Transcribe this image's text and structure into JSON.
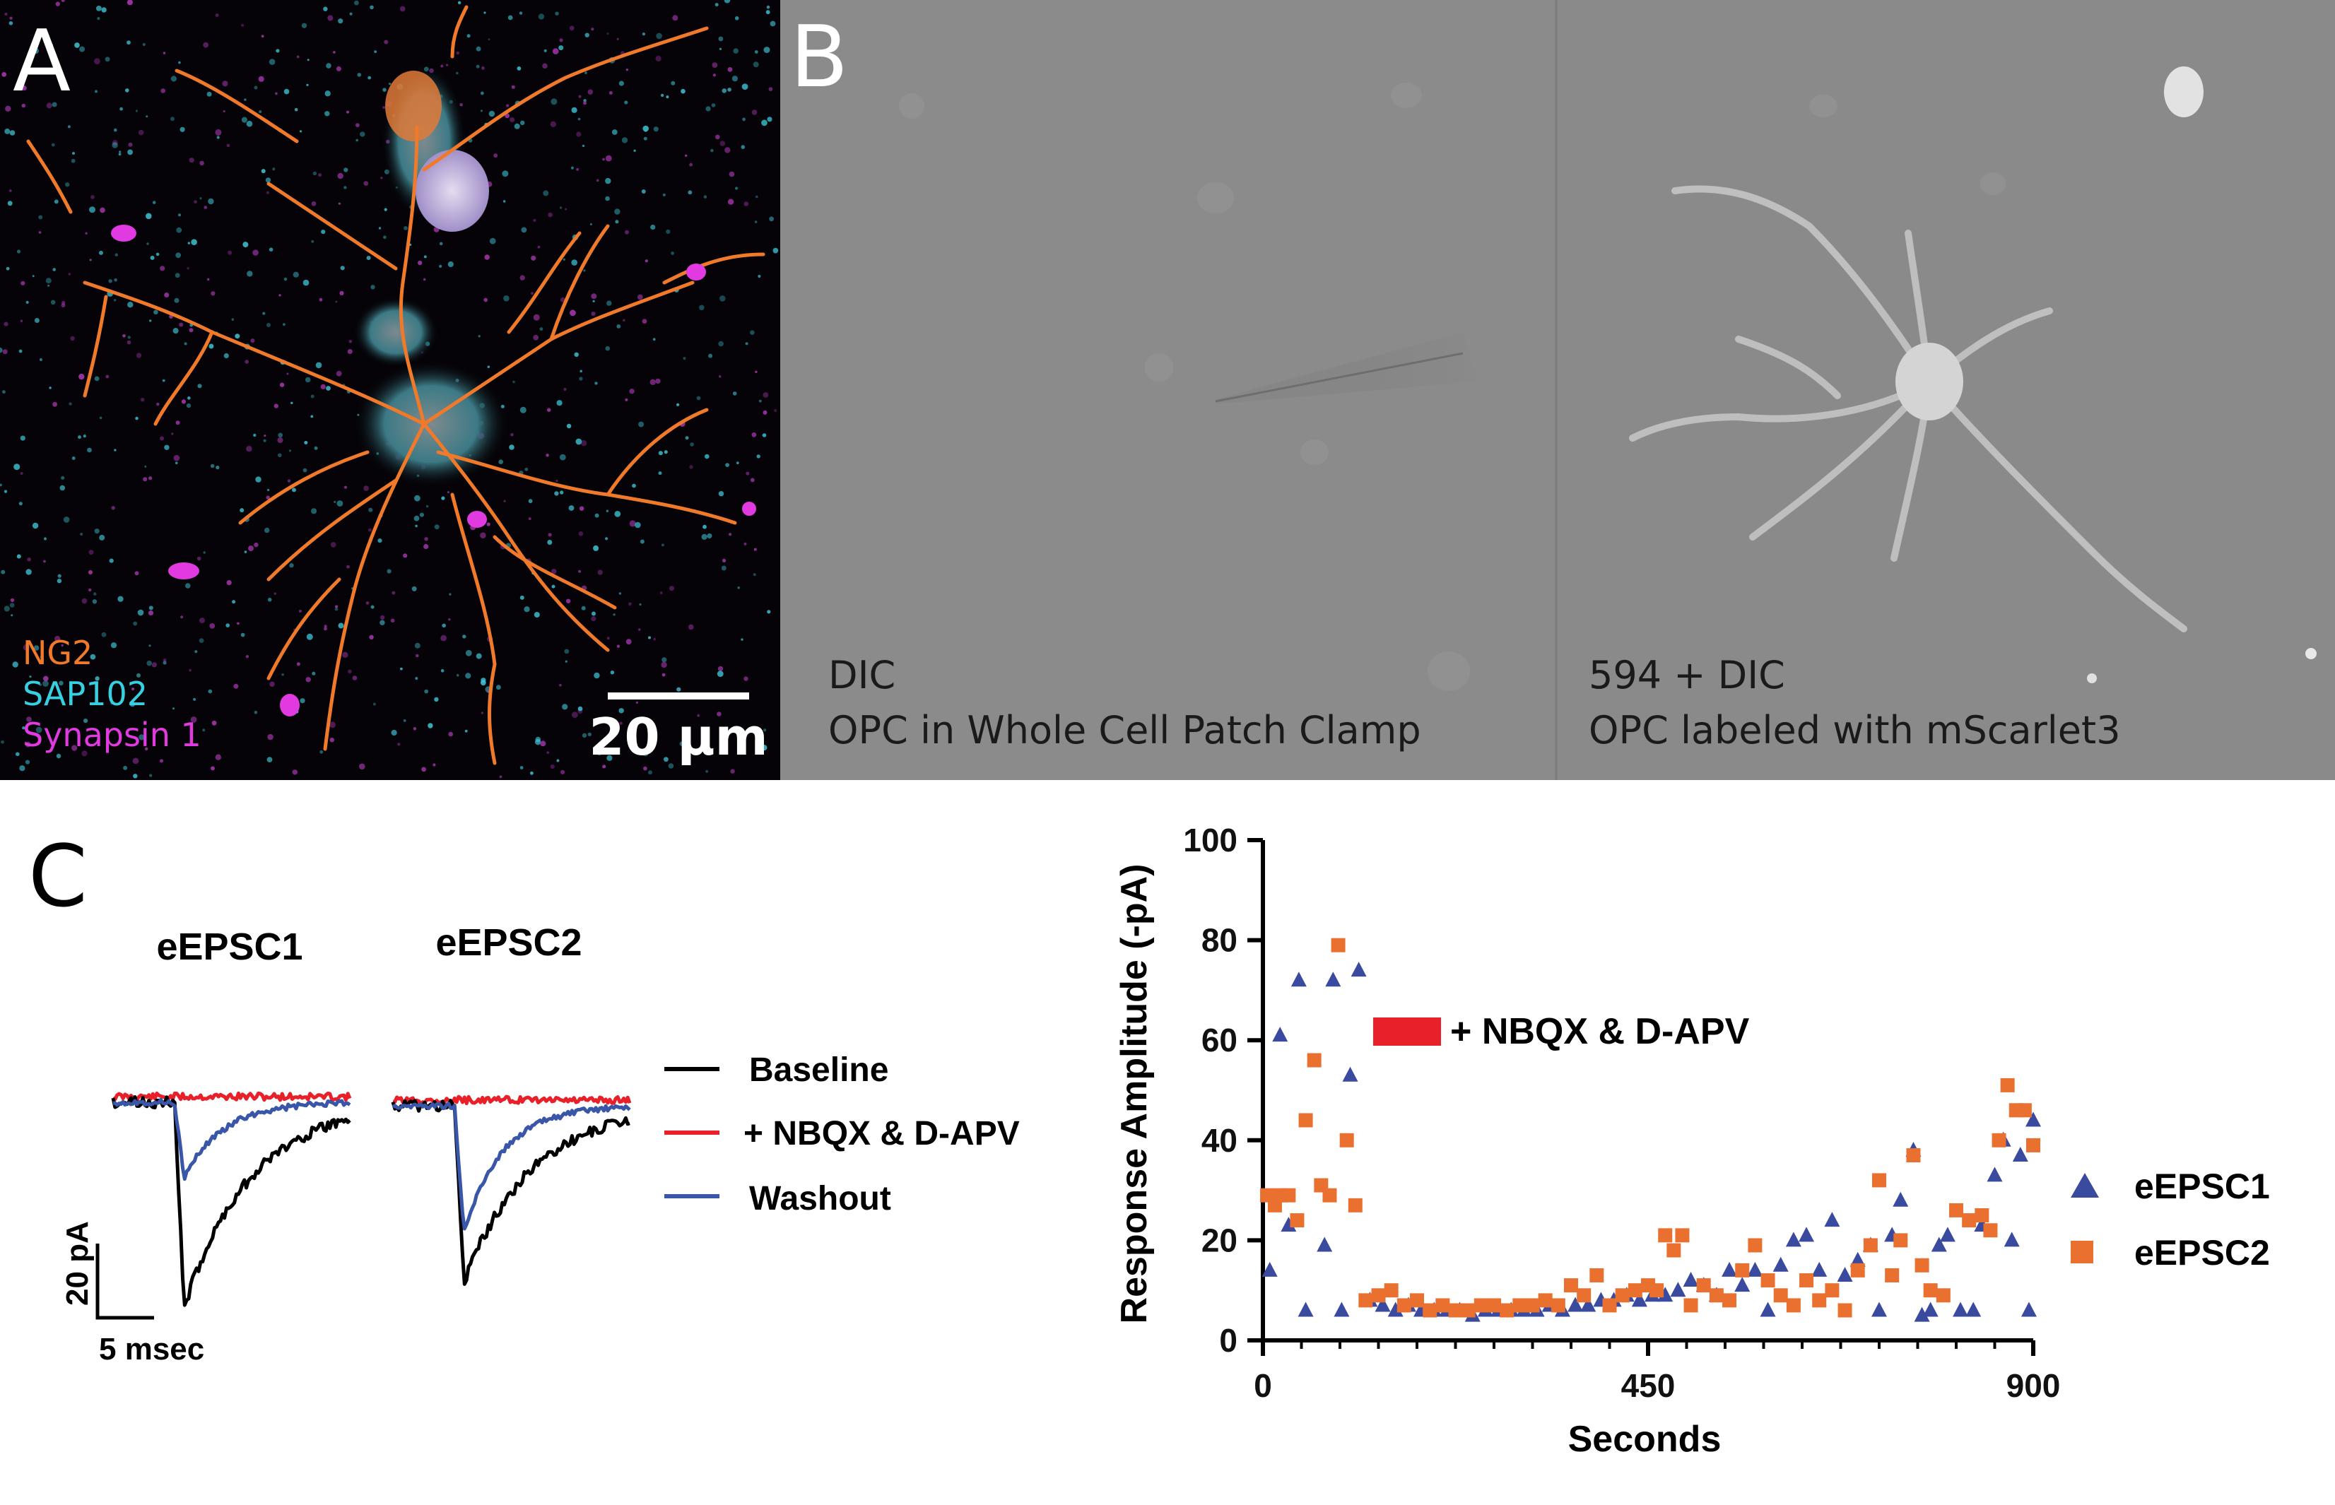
{
  "panel_a": {
    "letter": "A",
    "channels": [
      {
        "name": "NG2",
        "color": "#f07a2a"
      },
      {
        "name": "SAP102",
        "color": "#36d0e0"
      },
      {
        "name": "Synapsin 1",
        "color": "#e03ae0"
      }
    ],
    "scale_bar_label": "20 µm"
  },
  "panel_b": {
    "letter": "B",
    "left": {
      "line1": "DIC",
      "line2": "OPC in Whole Cell Patch Clamp"
    },
    "right": {
      "line1": "594 + DIC",
      "line2": "OPC labeled with mScarlet3"
    }
  },
  "panel_c": {
    "letter": "C",
    "trace_titles": [
      "eEPSC1",
      "eEPSC2"
    ],
    "trace_legend": [
      {
        "label": "Baseline",
        "color": "#000000"
      },
      {
        "label": "+ NBQX & D-APV",
        "color": "#e8202a"
      },
      {
        "label": "Washout",
        "color": "#3a56a8"
      }
    ],
    "scale_y_label": "20 pA",
    "scale_x_label": "5 msec"
  },
  "chart_data": {
    "type": "scatter",
    "xlabel": "Seconds",
    "ylabel": "Response Amplitude  (-pA)",
    "xlim": [
      0,
      900
    ],
    "ylim": [
      0,
      100
    ],
    "xticks": [
      0,
      450,
      900
    ],
    "yticks": [
      0,
      20,
      40,
      60,
      80,
      100
    ],
    "legend_position": "right",
    "drug_bar": {
      "label": "+ NBQX & D-APV",
      "color": "#e8202a"
    },
    "series": [
      {
        "name": "eEPSC1",
        "color": "#3a4a9f",
        "marker": "triangle",
        "points": [
          [
            8,
            14
          ],
          [
            20,
            61
          ],
          [
            30,
            23
          ],
          [
            42,
            72
          ],
          [
            50,
            6
          ],
          [
            72,
            19
          ],
          [
            82,
            72
          ],
          [
            92,
            6
          ],
          [
            102,
            53
          ],
          [
            112,
            74
          ],
          [
            125,
            8
          ],
          [
            140,
            7
          ],
          [
            155,
            6
          ],
          [
            170,
            7
          ],
          [
            185,
            6
          ],
          [
            200,
            6
          ],
          [
            215,
            6
          ],
          [
            230,
            6
          ],
          [
            245,
            5
          ],
          [
            260,
            6
          ],
          [
            275,
            6
          ],
          [
            290,
            6
          ],
          [
            305,
            6
          ],
          [
            320,
            6
          ],
          [
            335,
            7
          ],
          [
            350,
            6
          ],
          [
            365,
            7
          ],
          [
            380,
            7
          ],
          [
            395,
            8
          ],
          [
            410,
            8
          ],
          [
            425,
            9
          ],
          [
            440,
            8
          ],
          [
            455,
            9
          ],
          [
            470,
            9
          ],
          [
            485,
            10
          ],
          [
            500,
            12
          ],
          [
            515,
            11
          ],
          [
            530,
            9
          ],
          [
            545,
            14
          ],
          [
            560,
            11
          ],
          [
            575,
            14
          ],
          [
            590,
            6
          ],
          [
            605,
            15
          ],
          [
            620,
            20
          ],
          [
            635,
            21
          ],
          [
            650,
            14
          ],
          [
            665,
            24
          ],
          [
            680,
            13
          ],
          [
            695,
            16
          ],
          [
            710,
            19
          ],
          [
            720,
            6
          ],
          [
            735,
            21
          ],
          [
            745,
            28
          ],
          [
            760,
            38
          ],
          [
            770,
            5
          ],
          [
            780,
            6
          ],
          [
            790,
            19
          ],
          [
            800,
            21
          ],
          [
            815,
            6
          ],
          [
            830,
            6
          ],
          [
            840,
            23
          ],
          [
            855,
            33
          ],
          [
            865,
            40
          ],
          [
            875,
            20
          ],
          [
            885,
            37
          ],
          [
            895,
            6
          ],
          [
            900,
            44
          ]
        ]
      },
      {
        "name": "eEPSC2",
        "color": "#ea7030",
        "marker": "square",
        "points": [
          [
            5,
            29
          ],
          [
            14,
            27
          ],
          [
            20,
            29
          ],
          [
            30,
            29
          ],
          [
            40,
            24
          ],
          [
            50,
            44
          ],
          [
            60,
            56
          ],
          [
            68,
            31
          ],
          [
            78,
            29
          ],
          [
            88,
            79
          ],
          [
            98,
            40
          ],
          [
            108,
            27
          ],
          [
            120,
            8
          ],
          [
            135,
            9
          ],
          [
            150,
            10
          ],
          [
            165,
            7
          ],
          [
            180,
            8
          ],
          [
            195,
            6
          ],
          [
            210,
            7
          ],
          [
            225,
            6
          ],
          [
            240,
            6
          ],
          [
            255,
            7
          ],
          [
            270,
            7
          ],
          [
            285,
            6
          ],
          [
            300,
            7
          ],
          [
            315,
            7
          ],
          [
            330,
            8
          ],
          [
            345,
            7
          ],
          [
            360,
            11
          ],
          [
            375,
            9
          ],
          [
            390,
            13
          ],
          [
            405,
            7
          ],
          [
            420,
            9
          ],
          [
            435,
            10
          ],
          [
            450,
            11
          ],
          [
            460,
            10
          ],
          [
            470,
            21
          ],
          [
            480,
            18
          ],
          [
            490,
            21
          ],
          [
            500,
            7
          ],
          [
            515,
            11
          ],
          [
            530,
            9
          ],
          [
            545,
            8
          ],
          [
            560,
            14
          ],
          [
            575,
            19
          ],
          [
            590,
            12
          ],
          [
            605,
            9
          ],
          [
            620,
            7
          ],
          [
            635,
            12
          ],
          [
            650,
            8
          ],
          [
            665,
            10
          ],
          [
            680,
            6
          ],
          [
            695,
            14
          ],
          [
            710,
            19
          ],
          [
            720,
            32
          ],
          [
            735,
            13
          ],
          [
            745,
            20
          ],
          [
            760,
            37
          ],
          [
            770,
            15
          ],
          [
            780,
            10
          ],
          [
            795,
            9
          ],
          [
            810,
            26
          ],
          [
            825,
            24
          ],
          [
            840,
            25
          ],
          [
            850,
            22
          ],
          [
            860,
            40
          ],
          [
            870,
            51
          ],
          [
            880,
            46
          ],
          [
            890,
            46
          ],
          [
            900,
            39
          ]
        ]
      }
    ]
  }
}
